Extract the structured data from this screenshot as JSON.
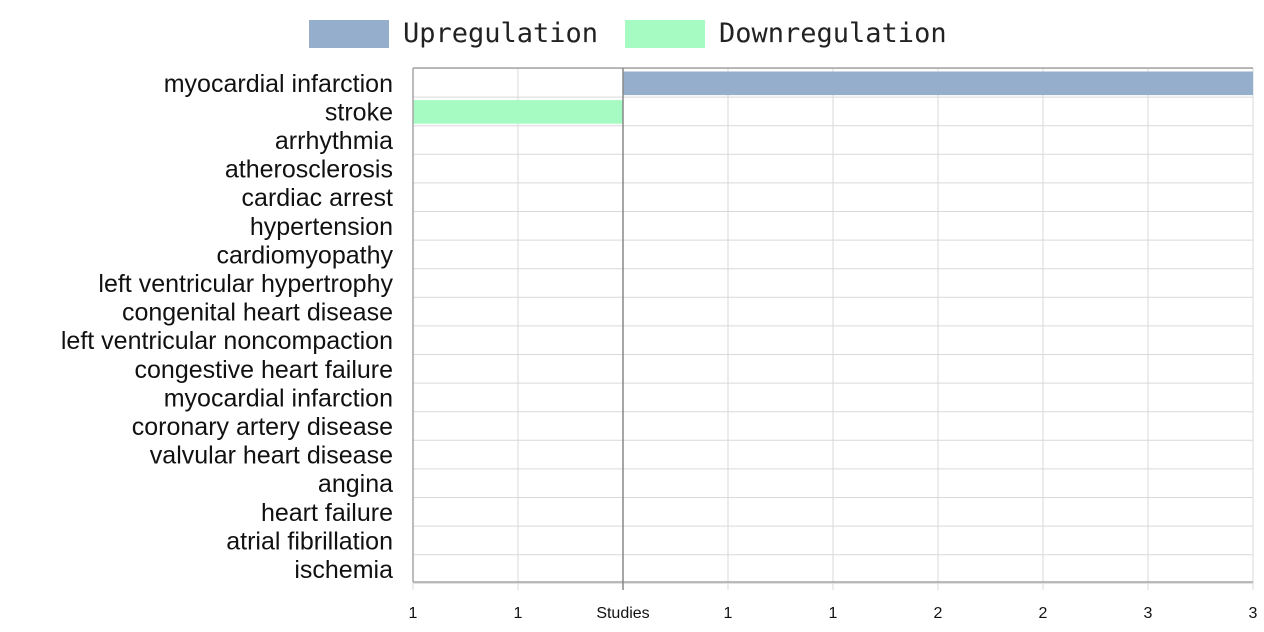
{
  "colors": {
    "upregulation": "#94AECB",
    "downregulation": "#A5FBC2",
    "grid": "#d9d9d9",
    "axis": "#a6a6a6",
    "center_line": "#888888"
  },
  "legend": {
    "items": [
      {
        "label": "Upregulation",
        "color_key": "upregulation"
      },
      {
        "label": "Downregulation",
        "color_key": "downregulation"
      }
    ]
  },
  "chart_data": {
    "type": "bar",
    "orientation": "horizontal",
    "diverging": true,
    "categories": [
      "myocardial infarction",
      "stroke",
      "arrhythmia",
      "atherosclerosis",
      "cardiac arrest",
      "hypertension",
      "cardiomyopathy",
      "left ventricular hypertrophy",
      "congenital heart disease",
      "left ventricular noncompaction",
      "congestive heart failure",
      "myocardial infarction",
      "coronary artery disease",
      "valvular heart disease",
      "angina",
      "heart failure",
      "atrial fibrillation",
      "ischemia"
    ],
    "series": [
      {
        "name": "Upregulation",
        "values": [
          3,
          0,
          0,
          0,
          0,
          0,
          0,
          0,
          0,
          0,
          0,
          0,
          0,
          0,
          0,
          0,
          0,
          0
        ]
      },
      {
        "name": "Downregulation",
        "values": [
          0,
          1,
          0,
          0,
          0,
          0,
          0,
          0,
          0,
          0,
          0,
          0,
          0,
          0,
          0,
          0,
          0,
          0
        ]
      }
    ],
    "xlim": [
      -1,
      3
    ],
    "xticks": [
      -1,
      -0.5,
      0,
      0.5,
      1,
      1.5,
      2,
      2.5,
      3
    ],
    "xtick_labels": [
      "1",
      "1",
      "Studies",
      "1",
      "1",
      "2",
      "2",
      "3",
      "3"
    ],
    "xlabel": "",
    "ylabel": "",
    "grid": true,
    "legend_position": "top"
  }
}
